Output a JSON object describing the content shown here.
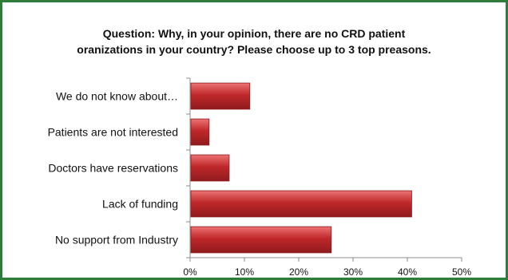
{
  "chart_data": {
    "type": "bar",
    "orientation": "horizontal",
    "title_lines": [
      "Question: Why, in your opinion, there are no CRD patient",
      "oranizations in your country? Please choose up to 3 top preasons."
    ],
    "categories": [
      "We do not know about…",
      "Patients are not interested",
      "Doctors have reservations",
      "Lack of funding",
      "No support from Industry"
    ],
    "values": [
      11,
      3.5,
      7.2,
      40.8,
      26
    ],
    "value_unit": "percent",
    "xlim": [
      0,
      50
    ],
    "x_ticks": [
      "0%",
      "10%",
      "20%",
      "30%",
      "40%",
      "50%"
    ],
    "grid": false,
    "legend": "none"
  },
  "colors": {
    "frame_border": "#2f7d3a",
    "bar_fill": "#c0282b",
    "bar_light": "#ec7474",
    "bar_dark": "#8e1b1d",
    "axis": "#8c8c8c",
    "text": "#111111"
  }
}
